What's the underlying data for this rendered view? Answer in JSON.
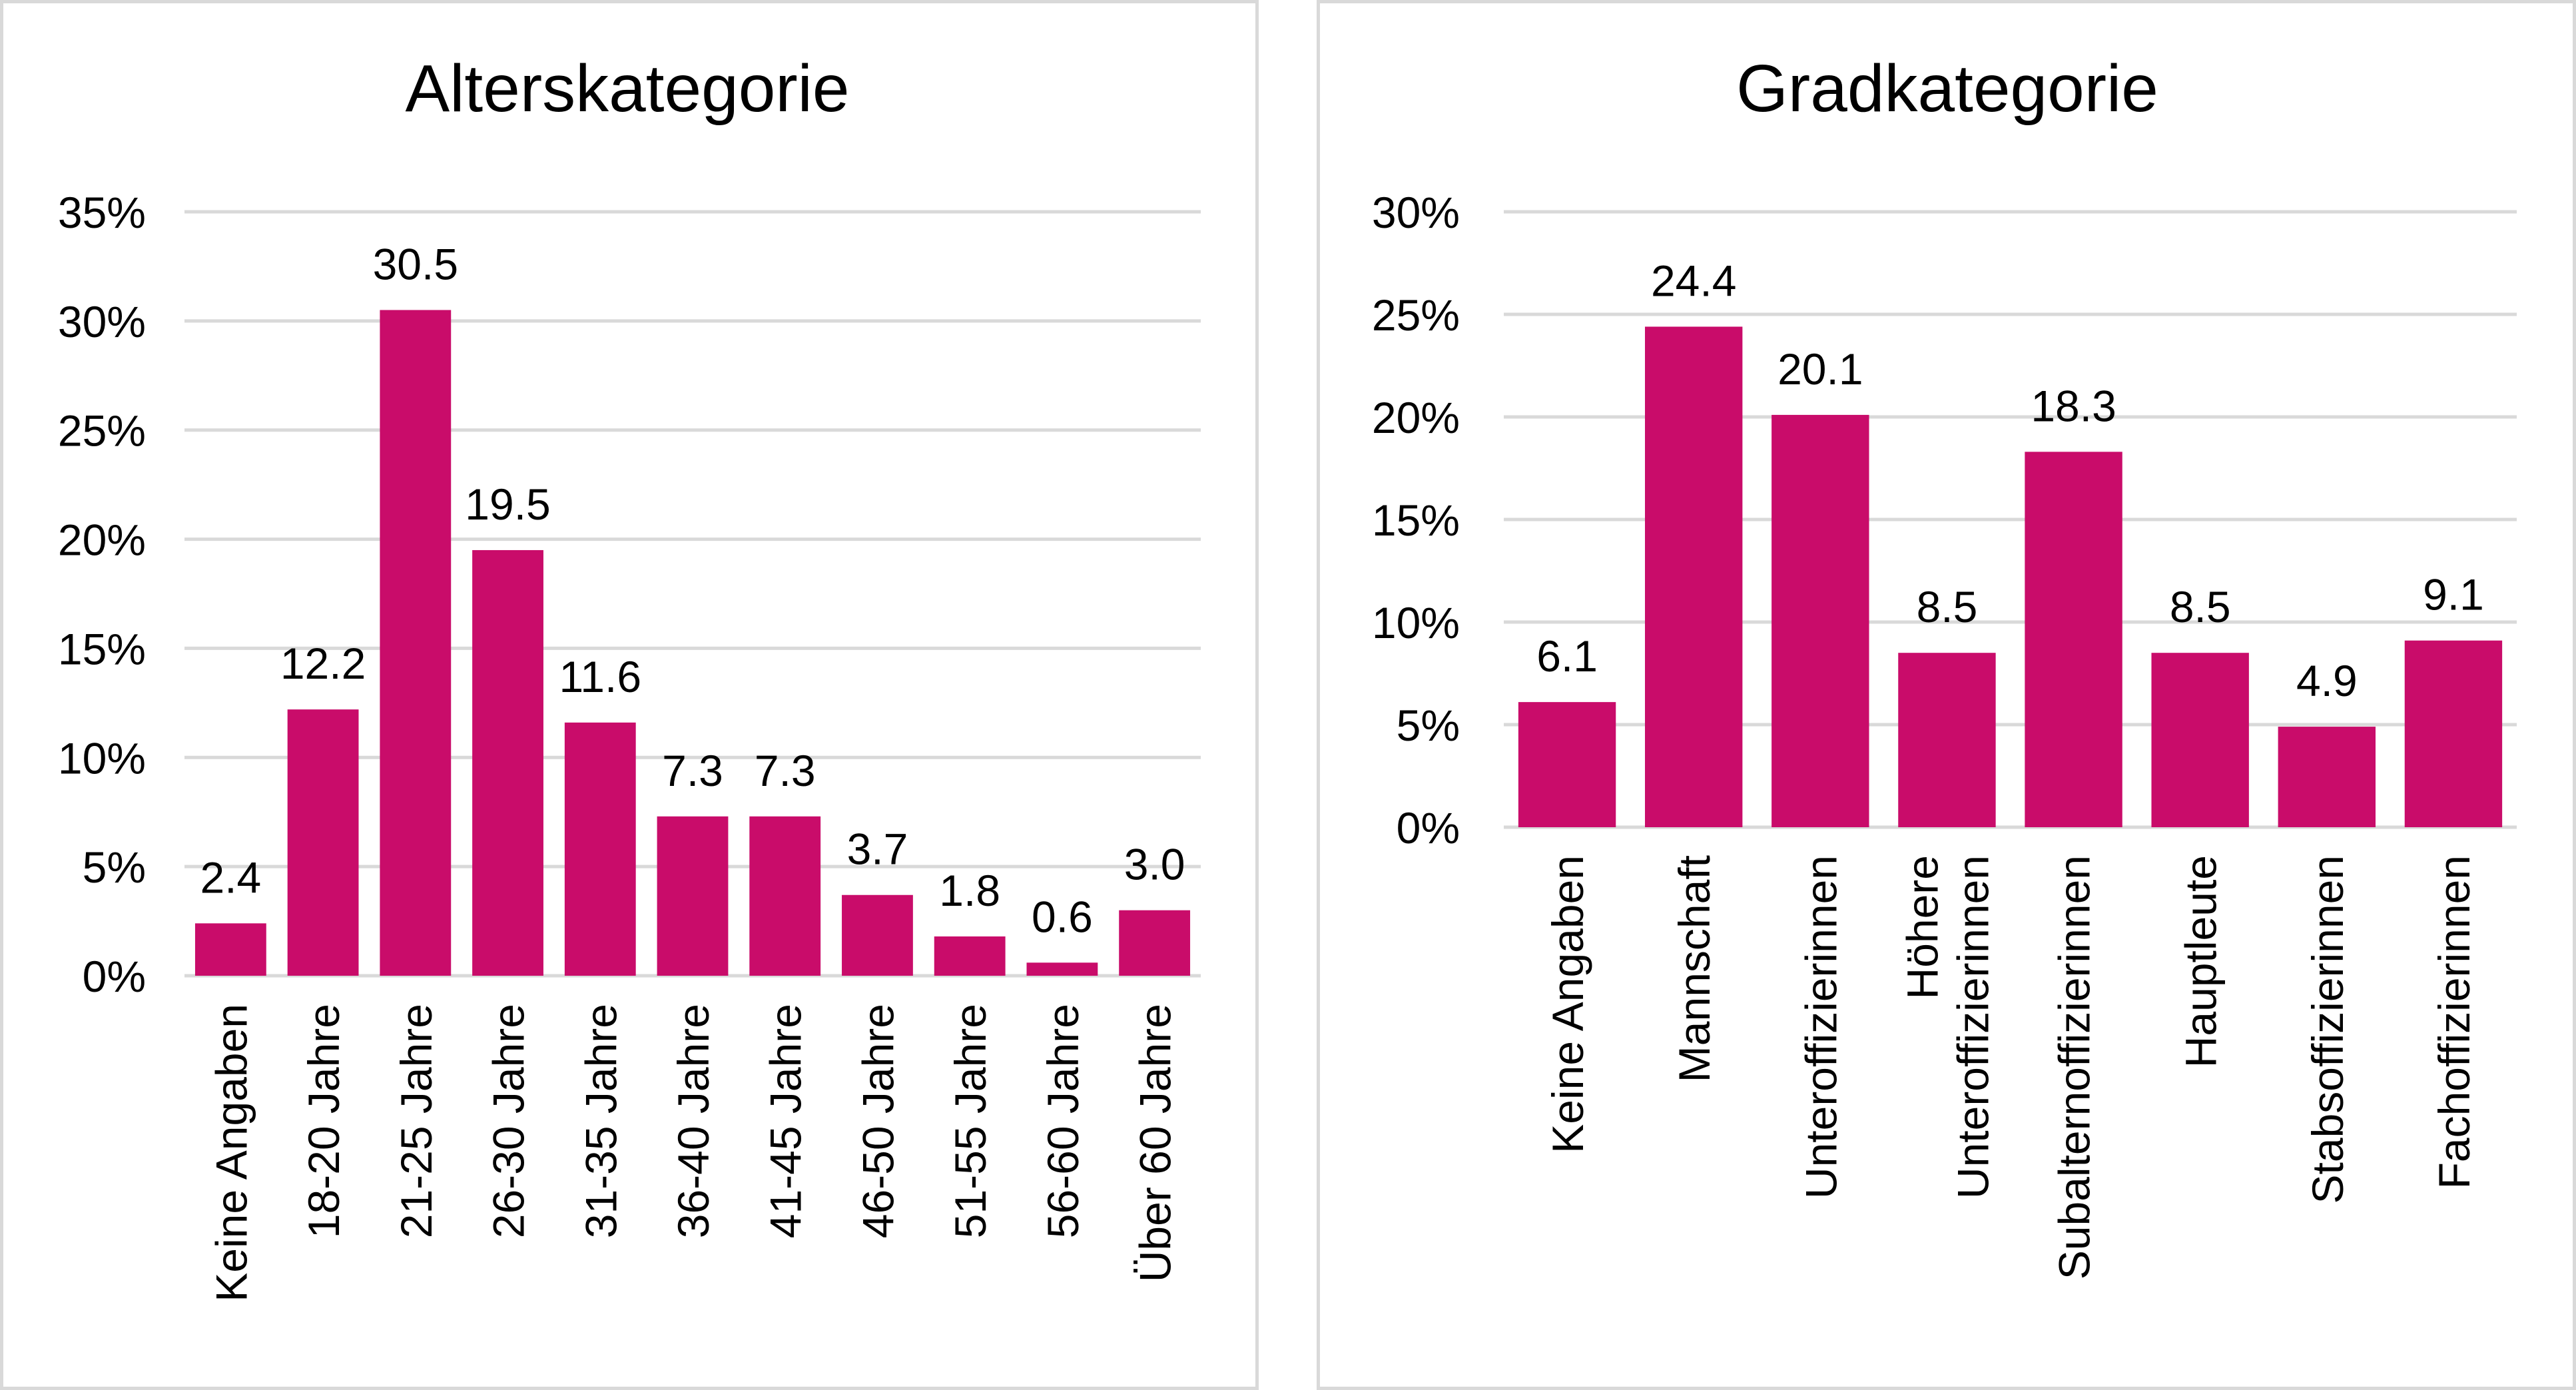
{
  "chart_data": [
    {
      "type": "bar",
      "title": "Alterskategorie",
      "xlabel": "",
      "ylabel": "",
      "categories": [
        "Keine Angaben",
        "18-20 Jahre",
        "21-25 Jahre",
        "26-30 Jahre",
        "31-35 Jahre",
        "36-40 Jahre",
        "41-45 Jahre",
        "46-50 Jahre",
        "51-55 Jahre",
        "56-60 Jahre",
        "Über 60 Jahre"
      ],
      "values": [
        2.4,
        12.2,
        30.5,
        19.5,
        11.6,
        7.3,
        7.3,
        3.7,
        1.8,
        0.6,
        3.0
      ],
      "data_labels": [
        "2.4",
        "12.2",
        "30.5",
        "19.5",
        "11.6",
        "7.3",
        "7.3",
        "3.7",
        "1.8",
        "0.6",
        "3.0"
      ],
      "ylim": [
        0,
        35
      ],
      "yticks": [
        "0%",
        "5%",
        "10%",
        "15%",
        "20%",
        "25%",
        "30%",
        "35%"
      ],
      "grid": true,
      "bar_color": "#c90c6a"
    },
    {
      "type": "bar",
      "title": "Gradkategorie",
      "xlabel": "",
      "ylabel": "",
      "categories": [
        "Keine Angaben",
        "Mannschaft",
        "Unteroffizierinnen",
        "Höhere Unteroffizierinnen",
        "Subalternoffizierinnen",
        "Hauptleute",
        "Stabsoffizierinnen",
        "Fachoffizierinnen"
      ],
      "category_lines": [
        [
          "Keine Angaben"
        ],
        [
          "Mannschaft"
        ],
        [
          "Unteroffizierinnen"
        ],
        [
          "Höhere",
          "Unteroffizierinnen"
        ],
        [
          "Subalternoffizierinnen"
        ],
        [
          "Hauptleute"
        ],
        [
          "Stabsoffizierinnen"
        ],
        [
          "Fachoffizierinnen"
        ]
      ],
      "values": [
        6.1,
        24.4,
        20.1,
        8.5,
        18.3,
        8.5,
        4.9,
        9.1
      ],
      "data_labels": [
        "6.1",
        "24.4",
        "20.1",
        "8.5",
        "18.3",
        "8.5",
        "4.9",
        "9.1"
      ],
      "ylim": [
        0,
        30
      ],
      "yticks": [
        "0%",
        "5%",
        "10%",
        "15%",
        "20%",
        "25%",
        "30%"
      ],
      "grid": true,
      "bar_color": "#c90c6a"
    }
  ]
}
